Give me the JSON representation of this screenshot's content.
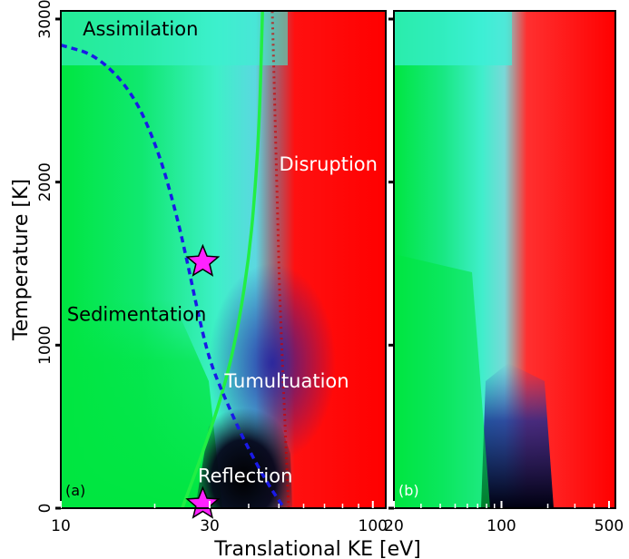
{
  "chart_data": [
    {
      "type": "heatmap",
      "panel_label": "(a)",
      "x_scale": "log",
      "xlim": [
        10,
        110
      ],
      "ylim": [
        0,
        3050
      ],
      "x_ticks": [
        {
          "value": 10,
          "label": "10"
        },
        {
          "value": 30,
          "label": "30"
        },
        {
          "value": 100,
          "label": "100"
        }
      ],
      "y_ticks": [
        {
          "value": 0,
          "label": "0"
        },
        {
          "value": 1000,
          "label": "1000"
        },
        {
          "value": 2000,
          "label": "2000"
        },
        {
          "value": 3000,
          "label": "3000"
        }
      ],
      "xlabel": "Translational  KE  [eV]",
      "ylabel": "Temperature  [K]",
      "colors": {
        "sedimentation": "#00e640",
        "assimilation": "#33eecc",
        "disruption": "#ff0000",
        "reflection": "#000000",
        "tumultuation": "#1e1e99"
      },
      "regions": [
        {
          "label": "Assimilation",
          "x": 18,
          "y": 2900,
          "color": "#000000"
        },
        {
          "label": "Disruption",
          "x": 72,
          "y": 2070,
          "color": "#ffffff"
        },
        {
          "label": "Sedimentation",
          "x": 17.5,
          "y": 1150,
          "color": "#000000"
        },
        {
          "label": "Tumultuation",
          "x": 53,
          "y": 740,
          "color": "#ffffff"
        },
        {
          "label": "Reflection",
          "x": 39,
          "y": 160,
          "color": "#ffffff"
        }
      ],
      "series": [
        {
          "style": "solid",
          "color": "#22ee44",
          "x": [
            24.5,
            28,
            33,
            37,
            40.5,
            42.5,
            43.5,
            44,
            44.3
          ],
          "y": [
            0,
            300,
            700,
            1100,
            1600,
            2100,
            2500,
            2850,
            3050
          ]
        },
        {
          "style": "dashed",
          "color": "#1a1ae6",
          "x": [
            10,
            13,
            17,
            20.5,
            23.5,
            25.5,
            27.5,
            30,
            34,
            39,
            46,
            52
          ],
          "y": [
            2840,
            2780,
            2550,
            2200,
            1800,
            1500,
            1200,
            900,
            650,
            400,
            150,
            0
          ]
        }
      ],
      "markers": [
        {
          "shape": "star",
          "color": "#ff22ff",
          "x": 28.5,
          "y": 1510
        },
        {
          "shape": "star",
          "color": "#ff22ff",
          "x": 28.5,
          "y": 25
        }
      ]
    },
    {
      "type": "heatmap",
      "panel_label": "(b)",
      "x_scale": "log",
      "xlim": [
        20,
        550
      ],
      "ylim": [
        0,
        3050
      ],
      "x_ticks": [
        {
          "value": 20,
          "label": "20"
        },
        {
          "value": 100,
          "label": "100"
        },
        {
          "value": 500,
          "label": "500"
        }
      ],
      "y_ticks": [
        {
          "value": 0,
          "label": ""
        },
        {
          "value": 1000,
          "label": ""
        },
        {
          "value": 2000,
          "label": ""
        },
        {
          "value": 3000,
          "label": ""
        }
      ]
    }
  ]
}
